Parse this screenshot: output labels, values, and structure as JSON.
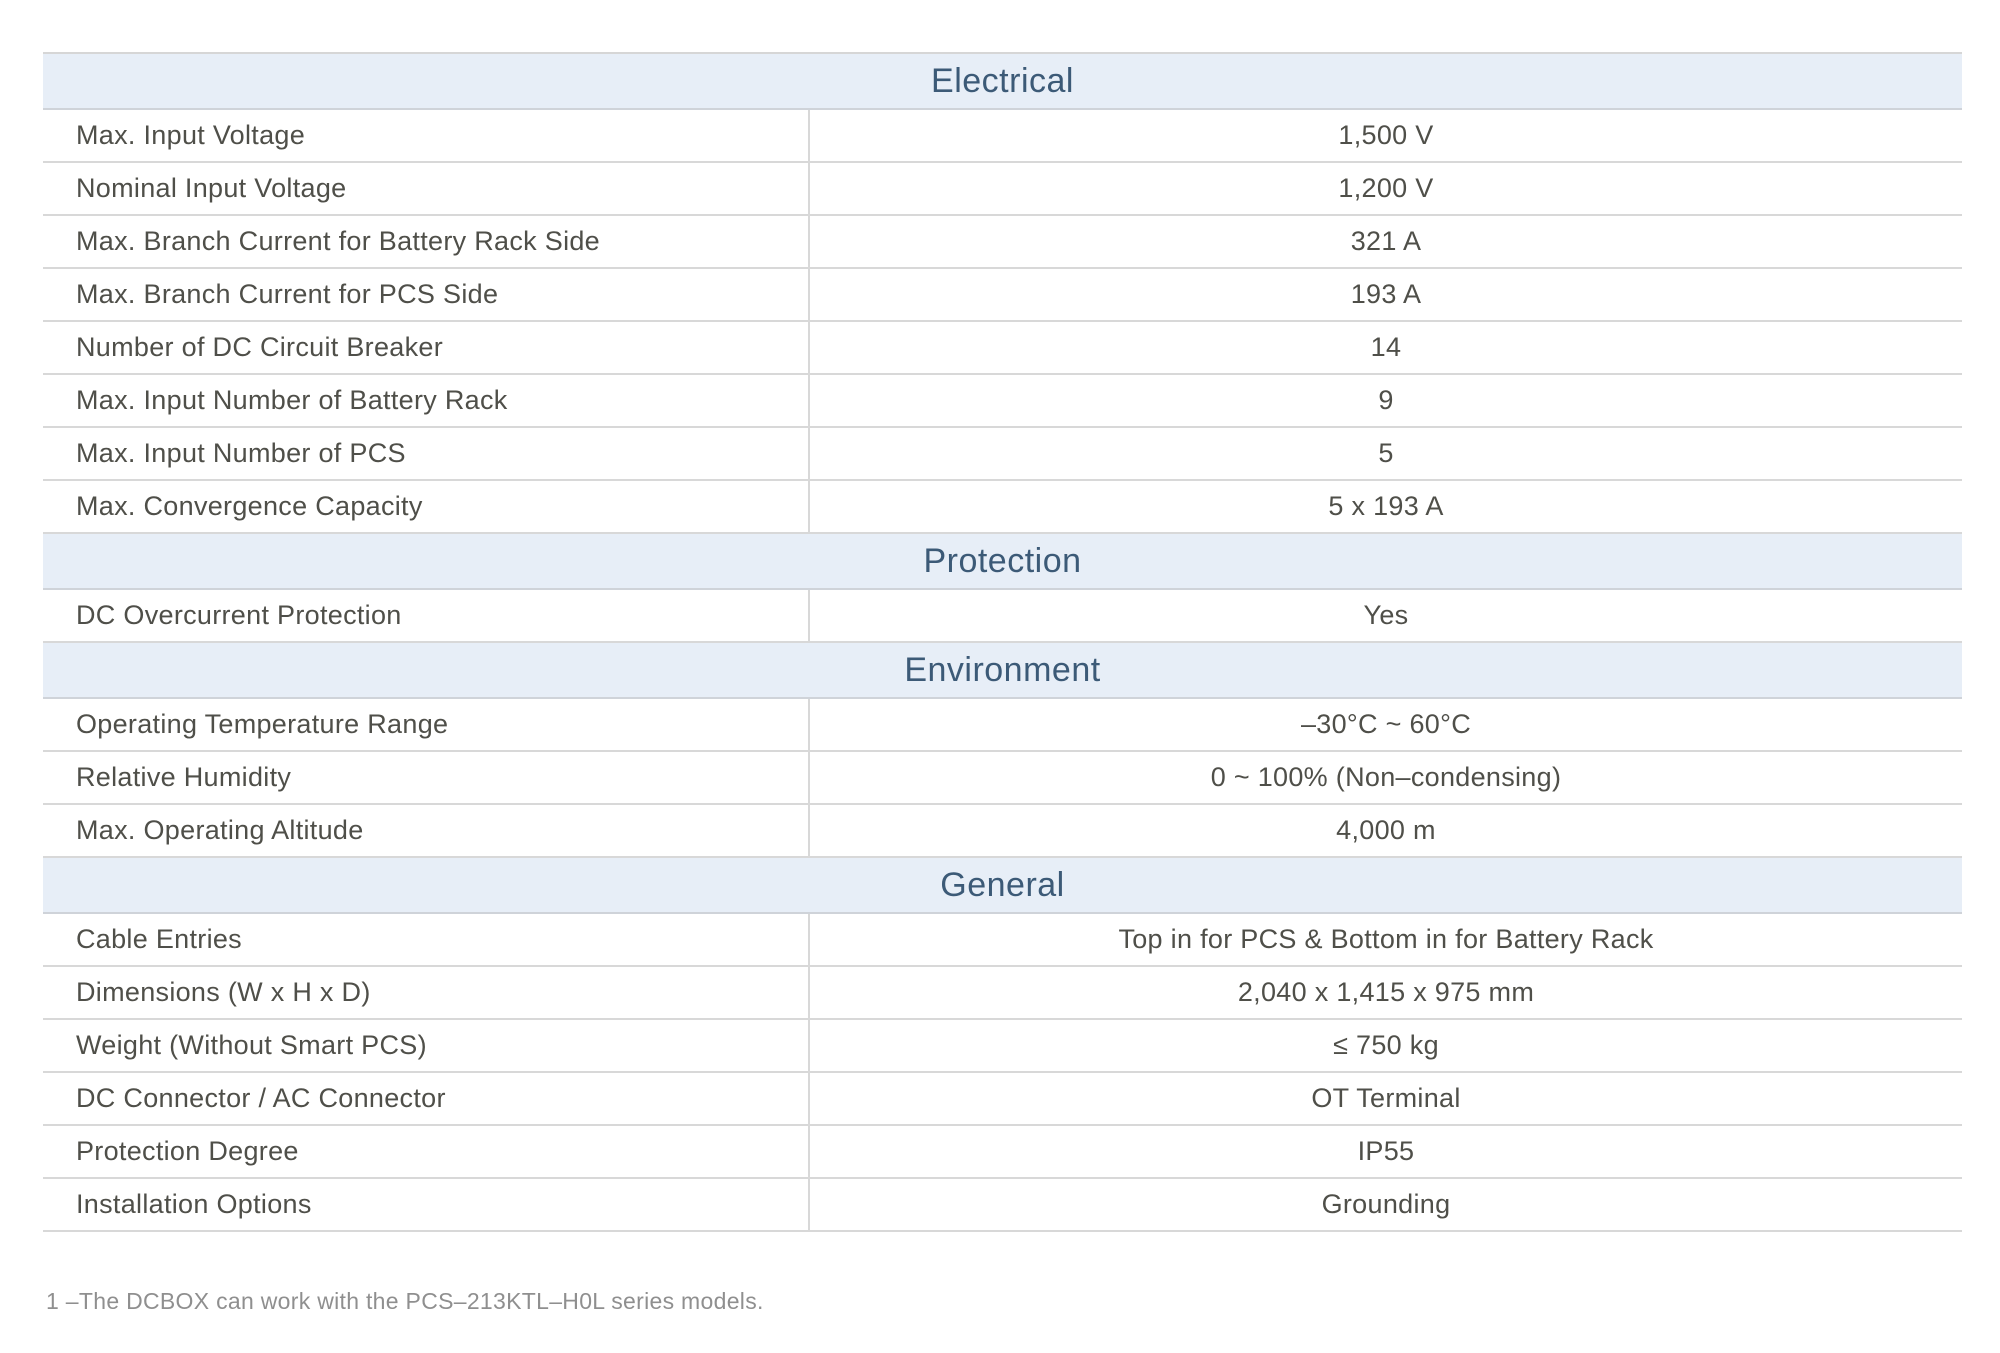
{
  "table": {
    "sections": [
      {
        "title": "Electrical",
        "rows": [
          {
            "label": "Max. Input Voltage",
            "value": "1,500 V"
          },
          {
            "label": "Nominal Input Voltage",
            "value": "1,200 V"
          },
          {
            "label": "Max. Branch Current for Battery Rack Side",
            "value": "321 A"
          },
          {
            "label": "Max. Branch Current for PCS Side",
            "value": "193 A"
          },
          {
            "label": "Number of DC Circuit Breaker",
            "value": "14"
          },
          {
            "label": "Max. Input Number of Battery Rack",
            "value": "9"
          },
          {
            "label": "Max. Input Number of PCS",
            "value": "5"
          },
          {
            "label": "Max. Convergence Capacity",
            "value": "5 x 193 A"
          }
        ]
      },
      {
        "title": "Protection",
        "rows": [
          {
            "label": "DC Overcurrent Protection",
            "value": "Yes"
          }
        ]
      },
      {
        "title": "Environment",
        "rows": [
          {
            "label": "Operating Temperature Range",
            "value": "–30°C ~ 60°C"
          },
          {
            "label": "Relative Humidity",
            "value": "0 ~ 100% (Non–condensing)"
          },
          {
            "label": "Max. Operating Altitude",
            "value": "4,000 m"
          }
        ]
      },
      {
        "title": "General",
        "rows": [
          {
            "label": "Cable Entries",
            "value": "Top in for PCS & Bottom in for Battery Rack"
          },
          {
            "label": "Dimensions (W x H x D)",
            "value": "2,040 x 1,415 x 975 mm"
          },
          {
            "label": "Weight (Without Smart PCS)",
            "value": "≤ 750 kg"
          },
          {
            "label": "DC Connector / AC Connector",
            "value": "OT Terminal"
          },
          {
            "label": "Protection Degree",
            "value": "IP55"
          },
          {
            "label": "Installation Options",
            "value": "Grounding"
          }
        ]
      }
    ]
  },
  "footnote": "1 –The DCBOX can work with the PCS–213KTL–H0L series models.",
  "colors": {
    "section_header_bg": "#e7eef7",
    "section_header_text": "#3c5a77",
    "body_text": "#4f4f49",
    "grid_line": "#d8d8d8",
    "footnote_text": "#8f8f8f"
  }
}
